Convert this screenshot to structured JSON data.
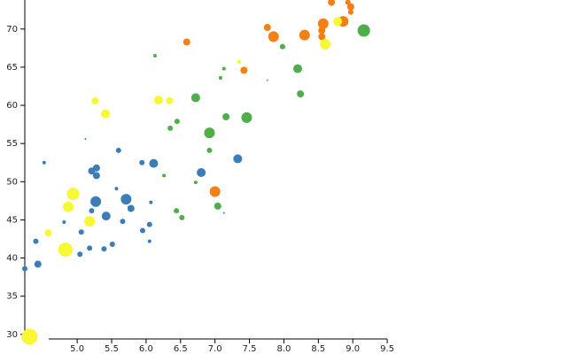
{
  "chart_data": {
    "type": "scatter",
    "xlim": [
      4.24,
      9.5
    ],
    "ylim": [
      29.4,
      73.8
    ],
    "xticks": [
      {
        "value": 5,
        "label": "5.0"
      },
      {
        "value": 5.5,
        "label": "5.5"
      },
      {
        "value": 6,
        "label": "6.0"
      },
      {
        "value": 6.5,
        "label": "6.5"
      },
      {
        "value": 7,
        "label": "7.0"
      },
      {
        "value": 7.5,
        "label": "7.5"
      },
      {
        "value": 8,
        "label": "8.0"
      },
      {
        "value": 8.5,
        "label": "8.5"
      },
      {
        "value": 9,
        "label": "9.0"
      },
      {
        "value": 9.5,
        "label": "9.5"
      }
    ],
    "yticks": [
      30,
      35,
      40,
      45,
      50,
      55,
      60,
      65,
      70
    ],
    "series": [
      {
        "color": "#3a7db8",
        "x": [
          4.24,
          4.43,
          4.4,
          4.52,
          4.81,
          5.04,
          5.06,
          5.18,
          5.39,
          5.51,
          5.12,
          5.21,
          5.28,
          5.28,
          5.27,
          5.21,
          5.42,
          5.57,
          5.66,
          5.6,
          5.71,
          5.78,
          5.94,
          5.95,
          6.05,
          6.05,
          6.07,
          6.11,
          6.8,
          7.13,
          7.33
        ],
        "values": [
          38.6,
          39.2,
          42.2,
          52.5,
          44.7,
          40.5,
          43.4,
          41.3,
          41.2,
          41.8,
          55.6,
          51.4,
          51.8,
          50.8,
          47.4,
          46.2,
          45.5,
          49.1,
          44.8,
          54.1,
          47.7,
          46.5,
          52.5,
          43.6,
          44.4,
          42.2,
          47.3,
          52.4,
          51.2,
          45.9,
          53.0
        ],
        "sizes": [
          3,
          4,
          3,
          2,
          2,
          3,
          3,
          3,
          3,
          3,
          1,
          4,
          4,
          4,
          6,
          3,
          5,
          2,
          3,
          3,
          6,
          4,
          3,
          3,
          3,
          2,
          2,
          5,
          5,
          1,
          5
        ]
      },
      {
        "color": "#4dae4a",
        "x": [
          6.13,
          6.26,
          6.35,
          6.44,
          6.45,
          6.52,
          6.72,
          6.72,
          6.92,
          6.92,
          7.04,
          7.08,
          7.13,
          7.16,
          7.46,
          7.76,
          7.98,
          8.2,
          8.24,
          9.16
        ],
        "values": [
          66.5,
          50.8,
          57.0,
          46.2,
          57.9,
          45.3,
          61.0,
          49.9,
          56.4,
          54.1,
          46.8,
          63.6,
          64.8,
          58.5,
          58.4,
          63.3,
          67.7,
          64.8,
          61.5,
          69.8
        ],
        "sizes": [
          2,
          2,
          3,
          3,
          3,
          3,
          5,
          2,
          6,
          3,
          4,
          2,
          2,
          4,
          6,
          1,
          3,
          5,
          4,
          7
        ]
      },
      {
        "color": "#f47f12",
        "x": [
          6.59,
          7.0,
          7.42,
          7.76,
          7.85,
          8.3,
          8.55,
          8.55,
          8.57,
          8.69,
          8.79,
          8.86,
          8.93,
          8.97,
          8.97
        ],
        "values": [
          68.3,
          48.7,
          64.6,
          70.2,
          69.0,
          69.2,
          69.8,
          69.0,
          70.7,
          73.5,
          71.0,
          71.0,
          73.5,
          72.9,
          72.2
        ],
        "sizes": [
          4,
          6,
          4,
          4,
          6,
          6,
          4,
          4,
          6,
          4,
          4,
          6,
          3,
          4,
          3
        ]
      },
      {
        "color": "#f7f736",
        "x": [
          4.31,
          4.58,
          4.83,
          4.87,
          4.94,
          5.18,
          5.26,
          5.41,
          6.18,
          6.34,
          7.35,
          8.6,
          8.78
        ],
        "values": [
          29.7,
          43.3,
          41.1,
          46.7,
          48.4,
          44.8,
          60.6,
          58.9,
          60.7,
          60.6,
          65.7,
          68.0,
          71.0
        ],
        "sizes": [
          9,
          4,
          8,
          6,
          7,
          6,
          4,
          5,
          5,
          4,
          2,
          6,
          5
        ]
      }
    ]
  }
}
